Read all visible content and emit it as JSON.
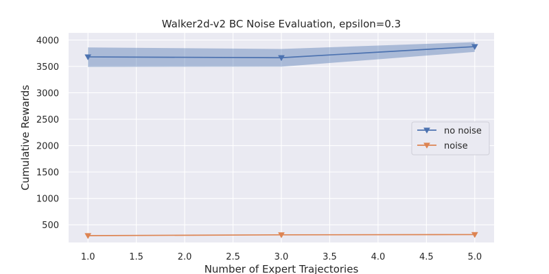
{
  "chart_data": {
    "type": "line",
    "title": "Walker2d-v2 BC Noise Evaluation, epsilon=0.3",
    "xlabel": "Number of Expert Trajectories",
    "ylabel": "Cumulative Rewards",
    "xlim": [
      0.8,
      5.2
    ],
    "ylim": [
      165,
      4135
    ],
    "xticks": [
      1.0,
      1.5,
      2.0,
      2.5,
      3.0,
      3.5,
      4.0,
      4.5,
      5.0
    ],
    "xtick_labels": [
      "1.0",
      "1.5",
      "2.0",
      "2.5",
      "3.0",
      "3.5",
      "4.0",
      "4.5",
      "5.0"
    ],
    "yticks": [
      500,
      1000,
      1500,
      2000,
      2500,
      3000,
      3500,
      4000
    ],
    "ytick_labels": [
      "500",
      "1000",
      "1500",
      "2000",
      "2500",
      "3000",
      "3500",
      "4000"
    ],
    "grid": true,
    "legend_position": "center-right",
    "series": [
      {
        "name": "no noise",
        "color": "#4c72b0",
        "marker": "triangle-down",
        "x": [
          1,
          3,
          5
        ],
        "y": [
          3680,
          3665,
          3875
        ],
        "band_upper": [
          3860,
          3830,
          3960
        ],
        "band_lower": [
          3490,
          3495,
          3775
        ]
      },
      {
        "name": "noise",
        "color": "#dd8452",
        "marker": "triangle-down",
        "x": [
          1,
          3,
          5
        ],
        "y": [
          295,
          310,
          315
        ]
      }
    ]
  }
}
